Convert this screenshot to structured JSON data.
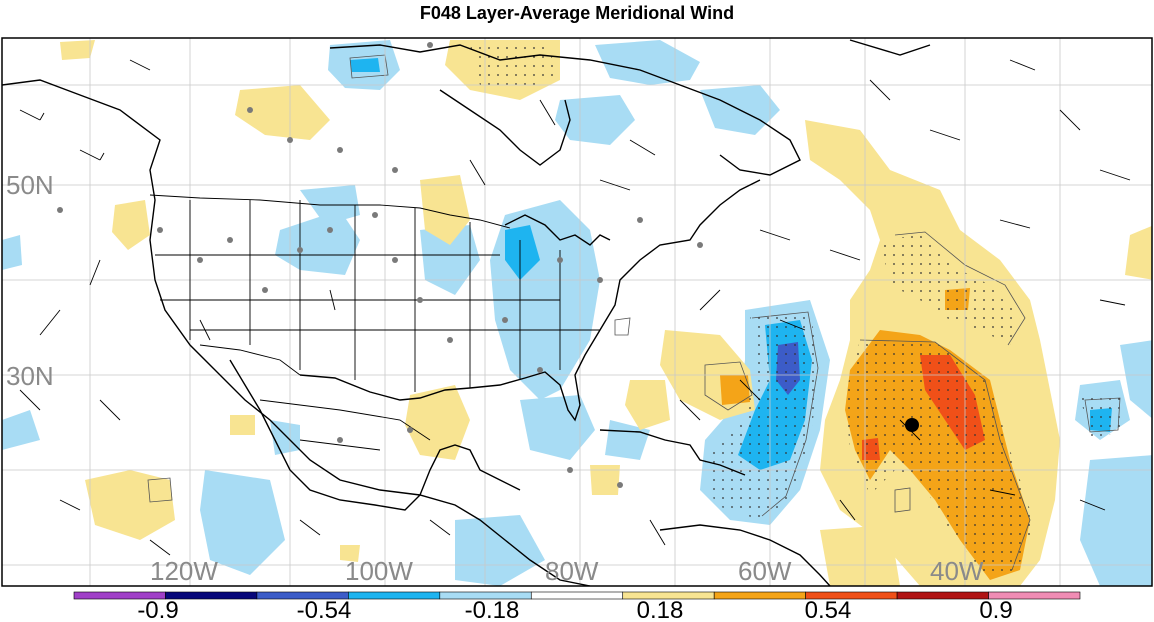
{
  "title": "F048 Layer-Average Meridional Wind",
  "lat_labels": [
    "50N",
    "30N"
  ],
  "lon_labels": [
    "120W",
    "100W",
    "80W",
    "60W",
    "40W"
  ],
  "colorbar": {
    "tick_labels": [
      "-0.9",
      "-0.54",
      "-0.18",
      "0.18",
      "0.54",
      "0.9"
    ],
    "colors": [
      "#a040c8",
      "#08087a",
      "#3c5cc8",
      "#1eb4f0",
      "#a8dcf4",
      "#ffffff",
      "#f8e492",
      "#f4a418",
      "#f05018",
      "#b01414",
      "#f08cb4"
    ]
  },
  "shading_colors": {
    "light_blue": "#a8dcf4",
    "mid_blue": "#1eb4f0",
    "dark_blue": "#3c5cc8",
    "light_yellow": "#f8e492",
    "orange": "#f4a418",
    "red_orange": "#f05018"
  },
  "chart_data": {
    "type": "heatmap",
    "title": "F048 Layer-Average Meridional Wind",
    "lon_ticks": [
      "120W",
      "100W",
      "80W",
      "60W",
      "40W"
    ],
    "lat_ticks": [
      "50N",
      "30N"
    ],
    "color_levels": [
      -0.9,
      -0.54,
      -0.18,
      0.18,
      0.54,
      0.9
    ],
    "features": [
      "wind barbs",
      "observation dots",
      "contour lines",
      "stippling",
      "cyclone center marker"
    ]
  }
}
